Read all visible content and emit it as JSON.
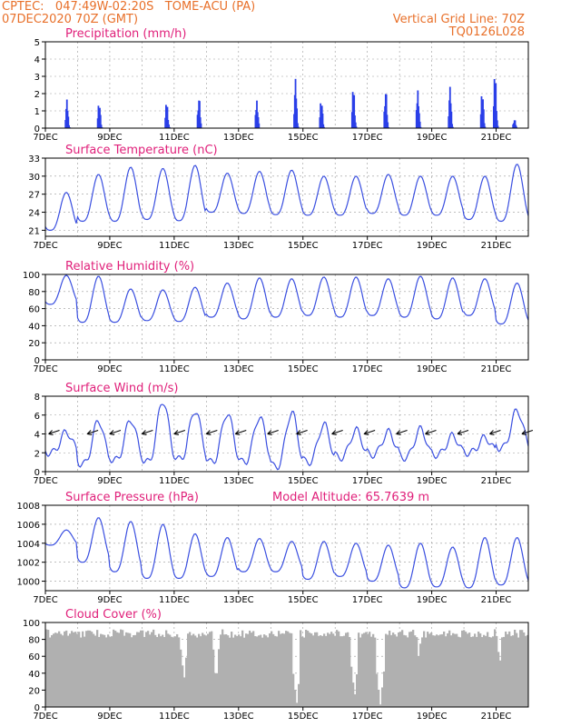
{
  "header": {
    "line1": "CPTEC:   047:49W-02:20S   TOME-ACU (PA)",
    "line2": "07DEC2020 70Z (GMT)",
    "right1": "Vertical Grid Line: 70Z",
    "right2": "TQ0126L028"
  },
  "colors": {
    "accent": "#e8702a",
    "title": "#e0207a",
    "series": "#3a4fe0",
    "bars": "#2a3fe8",
    "cloud": "#b0b0b0"
  },
  "x_tick_labels": [
    "7DEC",
    "9DEC",
    "11DEC",
    "13DEC",
    "15DEC",
    "17DEC",
    "19DEC",
    "21DEC"
  ],
  "chart_data": [
    {
      "type": "bar",
      "title": "Precipitation (mm/h)",
      "ylim": [
        0,
        5
      ],
      "yticks": [
        0,
        1,
        2,
        3,
        4,
        5
      ],
      "x_range_days": [
        7,
        22
      ],
      "bursts": [
        {
          "day": 7.7,
          "peak": 1.8
        },
        {
          "day": 8.7,
          "peak": 1.9
        },
        {
          "day": 10.8,
          "peak": 1.8
        },
        {
          "day": 11.8,
          "peak": 2.1
        },
        {
          "day": 13.6,
          "peak": 1.9
        },
        {
          "day": 14.8,
          "peak": 3.1
        },
        {
          "day": 15.6,
          "peak": 2.1
        },
        {
          "day": 16.6,
          "peak": 2.8
        },
        {
          "day": 17.6,
          "peak": 2.6
        },
        {
          "day": 18.6,
          "peak": 2.6
        },
        {
          "day": 19.6,
          "peak": 2.6
        },
        {
          "day": 20.6,
          "peak": 2.7
        },
        {
          "day": 21.0,
          "peak": 3.8
        },
        {
          "day": 21.6,
          "peak": 0.6
        }
      ]
    },
    {
      "type": "line",
      "title": "Surface Temperature (nC)",
      "ylim": [
        20,
        33
      ],
      "yticks": [
        21,
        24,
        27,
        30,
        33
      ],
      "daily_max": [
        27.3,
        30.3,
        31.5,
        31.3,
        31.8,
        30.5,
        30.8,
        31.0,
        30.0,
        30.0,
        30.3,
        30.0,
        30.0,
        30.0,
        32.0
      ],
      "daily_min": [
        21.0,
        22.5,
        22.5,
        22.8,
        22.6,
        24.0,
        23.8,
        23.6,
        23.5,
        23.5,
        23.8,
        23.5,
        23.5,
        22.8,
        22.5
      ]
    },
    {
      "type": "line",
      "title": "Relative Humidity (%)",
      "ylim": [
        0,
        100
      ],
      "yticks": [
        0,
        20,
        40,
        60,
        80,
        100
      ],
      "daily_max": [
        99,
        98,
        83,
        82,
        85,
        90,
        96,
        95,
        97,
        97,
        95,
        98,
        96,
        95,
        90
      ],
      "daily_min": [
        65,
        44,
        44,
        46,
        45,
        50,
        48,
        50,
        52,
        50,
        52,
        50,
        48,
        52,
        42
      ]
    },
    {
      "type": "line",
      "title": "Surface Wind (m/s)",
      "ylim": [
        0,
        8
      ],
      "yticks": [
        0,
        2,
        4,
        6,
        8
      ],
      "daily_max": [
        4.2,
        5.4,
        5.5,
        7.5,
        6.5,
        6.2,
        5.8,
        6.3,
        5.0,
        4.4,
        4.2,
        4.5,
        3.8,
        3.6,
        6.5
      ],
      "daily_min": [
        2.0,
        0.8,
        1.2,
        1.0,
        1.3,
        1.0,
        1.0,
        0.5,
        1.0,
        1.5,
        1.8,
        1.5,
        1.8,
        2.0,
        2.5
      ],
      "arrow_days": [
        7.1,
        8.3,
        9.0,
        10.0,
        11.0,
        12.0,
        12.9,
        13.9,
        14.8,
        15.9,
        16.9,
        17.9,
        18.8,
        19.8,
        20.8,
        21.8
      ]
    },
    {
      "type": "line",
      "title": "Surface Pressure (hPa)",
      "annotation": "Model Altitude: 65.7639 m",
      "ylim": [
        999,
        1008
      ],
      "yticks": [
        1000,
        1002,
        1004,
        1006,
        1008
      ],
      "daily_max": [
        1005.4,
        1006.7,
        1006.3,
        1006.0,
        1005.0,
        1004.6,
        1004.5,
        1004.2,
        1004.2,
        1004.0,
        1003.8,
        1004.0,
        1003.6,
        1004.6,
        1004.6
      ],
      "daily_min": [
        1003.8,
        1002.0,
        1001.0,
        1000.3,
        1000.3,
        1000.5,
        1001.0,
        1001.0,
        1000.2,
        1000.5,
        1000.0,
        999.3,
        999.4,
        999.3,
        999.6
      ]
    },
    {
      "type": "area",
      "title": "Cloud Cover (%)",
      "ylim": [
        0,
        100
      ],
      "yticks": [
        0,
        20,
        40,
        60,
        80,
        100
      ],
      "baseline": 92,
      "dips": [
        {
          "day": 11.3,
          "min": 35
        },
        {
          "day": 12.3,
          "min": 40
        },
        {
          "day": 14.8,
          "min": 5
        },
        {
          "day": 16.6,
          "min": 15
        },
        {
          "day": 17.4,
          "min": 3
        },
        {
          "day": 18.6,
          "min": 60
        },
        {
          "day": 21.1,
          "min": 55
        }
      ]
    }
  ]
}
